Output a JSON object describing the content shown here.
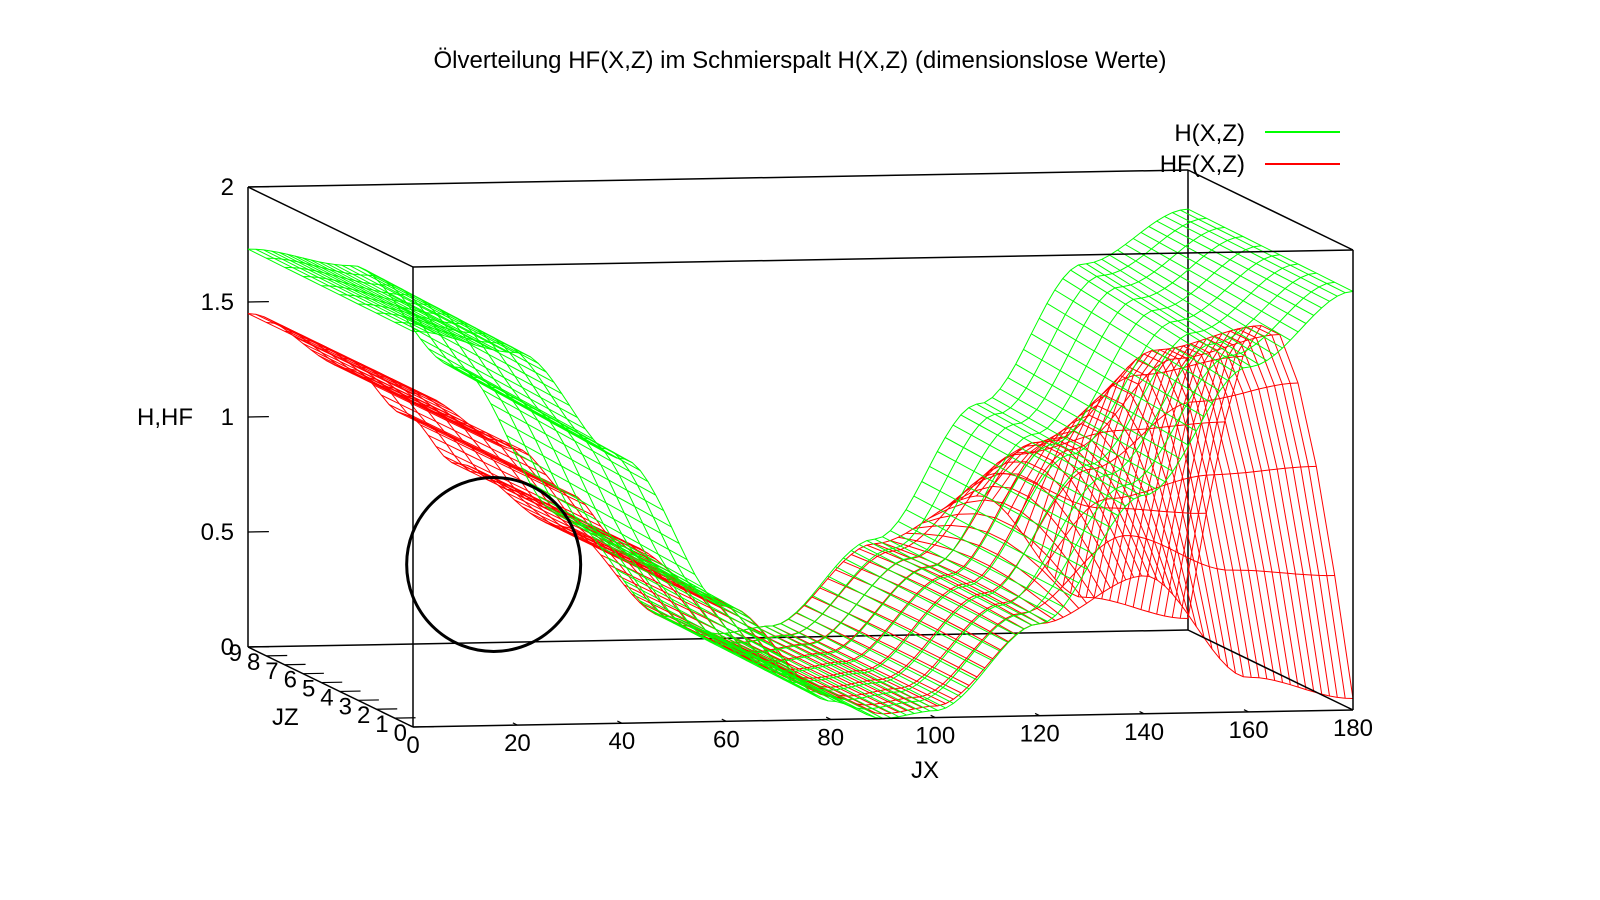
{
  "chart_data": {
    "type": "surface3d",
    "title": "Ölverteilung HF(X,Z) im Schmierspalt H(X,Z) (dimensionslose Werte)",
    "xlabel": "JX",
    "ylabel": "JZ",
    "zlabel": "H,HF",
    "xlim": [
      0,
      180
    ],
    "ylim": [
      0,
      9
    ],
    "zlim": [
      0,
      2
    ],
    "x_ticks": [
      "0",
      "20",
      "40",
      "60",
      "80",
      "100",
      "120",
      "140",
      "160",
      "180"
    ],
    "y_ticks": [
      "0",
      "1",
      "2",
      "3",
      "4",
      "5",
      "6",
      "7",
      "8",
      "9"
    ],
    "z_ticks": [
      "0",
      "0.5",
      "1",
      "1.5",
      "2"
    ],
    "legend_position": "top-right",
    "series": [
      {
        "name": "H(X,Z)",
        "color": "#00ff00",
        "x": [
          0,
          20,
          40,
          60,
          80,
          90,
          100,
          120,
          140,
          160,
          180
        ],
        "z_rear": [
          1.73,
          1.65,
          1.2,
          0.55,
          0.1,
          0.02,
          0.05,
          0.42,
          1.0,
          1.6,
          1.83
        ],
        "z_front": [
          1.72,
          1.62,
          1.15,
          0.5,
          0.08,
          0.0,
          0.03,
          0.4,
          0.95,
          1.5,
          1.82
        ]
      },
      {
        "name": "HF(X,Z)",
        "color": "#ff0000",
        "x": [
          0,
          20,
          30,
          40,
          60,
          80,
          90,
          100,
          120,
          140,
          160,
          180
        ],
        "z_edge": [
          1.45,
          1.2,
          1.0,
          0.78,
          0.5,
          0.1,
          0.02,
          0.05,
          0.4,
          0.6,
          0.15,
          0.05
        ],
        "z_center": [
          1.45,
          1.2,
          1.0,
          0.78,
          0.5,
          0.1,
          0.02,
          0.05,
          0.42,
          1.0,
          1.4,
          1.5
        ]
      }
    ],
    "annotation": {
      "shape": "circle",
      "color": "#000000",
      "x": 33,
      "y": 5,
      "z": 0.5
    }
  }
}
